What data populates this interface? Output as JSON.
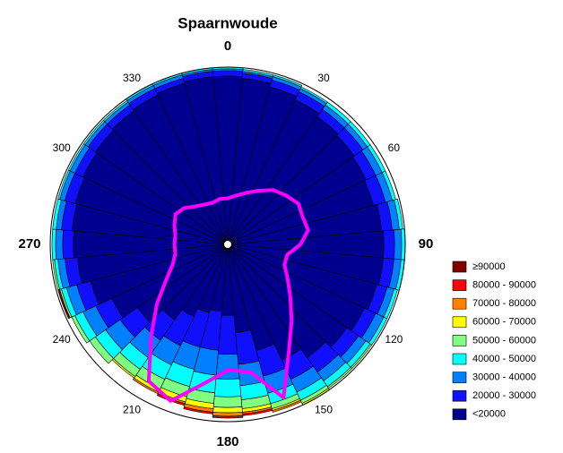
{
  "chart_data": {
    "type": "polar-stacked",
    "title": "Spaarnwoude",
    "theta": [
      0,
      10,
      20,
      30,
      40,
      50,
      60,
      70,
      80,
      90,
      100,
      110,
      120,
      130,
      140,
      150,
      160,
      170,
      180,
      190,
      200,
      210,
      220,
      230,
      240,
      250,
      260,
      270,
      280,
      290,
      300,
      310,
      320,
      330,
      340,
      350
    ],
    "angle_ticks": [
      0,
      30,
      60,
      90,
      120,
      150,
      180,
      210,
      240,
      270,
      300,
      330
    ],
    "rlim": [
      0,
      100
    ],
    "series": [
      {
        "name": "≥90000",
        "color": "#800000",
        "values": [
          0,
          0,
          0,
          0,
          0,
          0,
          0,
          0,
          0,
          0,
          0,
          0,
          0,
          0,
          0,
          0,
          0,
          0,
          0,
          0,
          0,
          0,
          0,
          0,
          0,
          1,
          0,
          0,
          0,
          0,
          0,
          0,
          0,
          0,
          0,
          0
        ]
      },
      {
        "name": "80000 - 90000",
        "color": "#ff0000",
        "values": [
          0,
          0,
          0,
          0,
          0,
          0,
          0,
          0,
          0,
          0,
          0,
          0,
          0,
          0,
          0,
          0,
          0,
          1,
          1,
          1,
          1,
          0,
          0,
          0,
          0,
          0,
          0,
          0,
          0,
          0,
          0,
          0,
          0,
          0,
          0,
          0
        ]
      },
      {
        "name": "70000 - 80000",
        "color": "#ff8000",
        "values": [
          0,
          0,
          0,
          0,
          0,
          0,
          0,
          0,
          0,
          0,
          0,
          0,
          0,
          0,
          0,
          0,
          1,
          1,
          2,
          2,
          1,
          1,
          0,
          0,
          0,
          0,
          0,
          0,
          0,
          0,
          0,
          0,
          0,
          0,
          0,
          0
        ]
      },
      {
        "name": "60000 - 70000",
        "color": "#ffff00",
        "values": [
          0,
          0,
          0,
          0,
          0,
          0,
          0,
          0,
          0,
          0,
          0,
          0,
          0,
          0,
          0,
          1,
          1,
          2,
          3,
          3,
          3,
          2,
          1,
          0,
          0,
          0,
          0,
          0,
          0,
          0,
          0,
          0,
          0,
          0,
          0,
          0
        ]
      },
      {
        "name": "50000 - 60000",
        "color": "#80ff80",
        "values": [
          0,
          0,
          0,
          0,
          0,
          0,
          0,
          0,
          0,
          0,
          0,
          0,
          0,
          1,
          1,
          2,
          3,
          5,
          6,
          6,
          6,
          6,
          5,
          4,
          2,
          1,
          1,
          0,
          0,
          0,
          0,
          0,
          0,
          0,
          0,
          0
        ]
      },
      {
        "name": "40000 - 50000",
        "color": "#00ffff",
        "values": [
          1,
          1,
          1,
          1,
          2,
          2,
          2,
          2,
          2,
          2,
          2,
          2,
          2,
          3,
          4,
          5,
          6,
          8,
          10,
          10,
          10,
          9,
          8,
          7,
          5,
          3,
          2,
          2,
          2,
          1,
          1,
          1,
          1,
          1,
          1,
          1
        ]
      },
      {
        "name": "30000 - 40000",
        "color": "#0080ff",
        "values": [
          1,
          1,
          2,
          2,
          3,
          3,
          4,
          4,
          4,
          4,
          4,
          4,
          5,
          5,
          6,
          8,
          10,
          12,
          14,
          14,
          13,
          12,
          12,
          10,
          8,
          6,
          4,
          4,
          3,
          3,
          3,
          2,
          2,
          2,
          2,
          1
        ]
      },
      {
        "name": "20000 - 30000",
        "color": "#1010ff",
        "values": [
          3,
          3,
          4,
          5,
          5,
          6,
          6,
          7,
          6,
          6,
          6,
          6,
          7,
          8,
          10,
          12,
          15,
          18,
          22,
          22,
          20,
          18,
          14,
          12,
          10,
          8,
          7,
          6,
          6,
          6,
          5,
          5,
          4,
          4,
          3,
          3
        ]
      },
      {
        "name": "<20000",
        "color": "#00008f",
        "values": [
          95,
          94,
          92,
          90,
          88,
          87,
          86,
          85,
          87,
          88,
          88,
          87,
          85,
          82,
          78,
          72,
          62,
          50,
          40,
          38,
          40,
          45,
          52,
          62,
          72,
          80,
          85,
          87,
          88,
          89,
          90,
          91,
          92,
          93,
          94,
          95
        ]
      }
    ],
    "line": {
      "color": "#ff00ff",
      "values": [
        26,
        28,
        31,
        35,
        40,
        43,
        46,
        45,
        46,
        41,
        34,
        34,
        39,
        46,
        56,
        69,
        92,
        73,
        71,
        80,
        94,
        89,
        67,
        52,
        40,
        33,
        30,
        30,
        30,
        32,
        34,
        32,
        28,
        26,
        25,
        26
      ]
    }
  }
}
